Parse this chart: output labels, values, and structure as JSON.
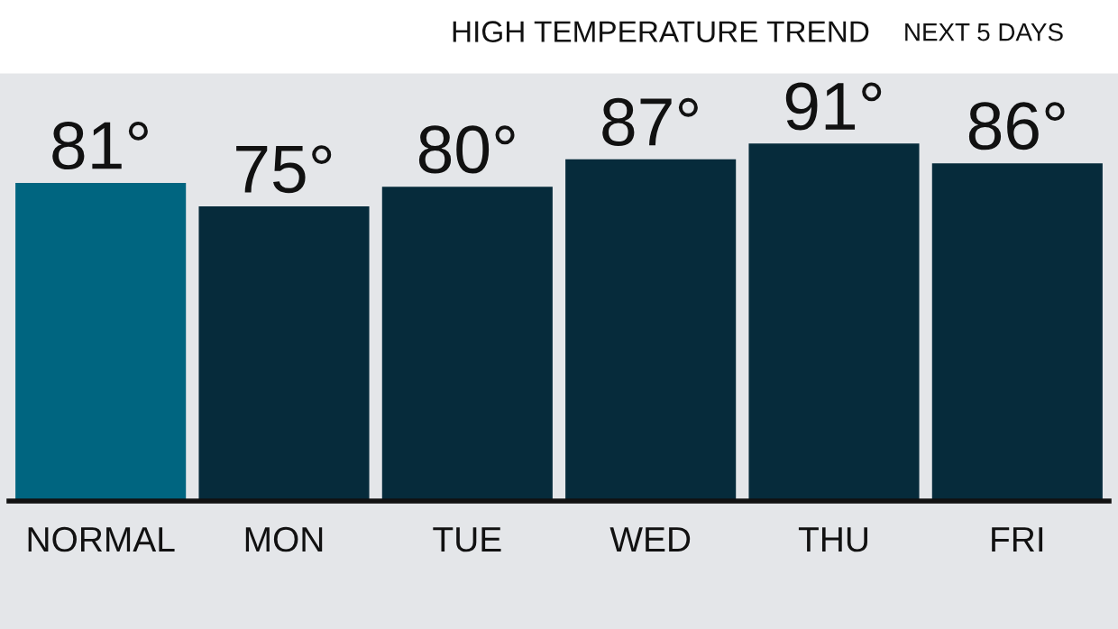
{
  "chart_data": {
    "type": "bar",
    "title": "HIGH TEMPERATURE TREND",
    "subtitle": "NEXT 5 DAYS",
    "categories": [
      "NORMAL",
      "MON",
      "TUE",
      "WED",
      "THU",
      "FRI"
    ],
    "values": [
      81,
      75,
      80,
      87,
      91,
      86
    ],
    "value_labels": [
      "81°",
      "75°",
      "80°",
      "87°",
      "91°",
      "86°"
    ],
    "colors": [
      "#006580",
      "#062b3b",
      "#062b3b",
      "#062b3b",
      "#062b3b",
      "#062b3b"
    ],
    "grid": false,
    "legend": false
  }
}
